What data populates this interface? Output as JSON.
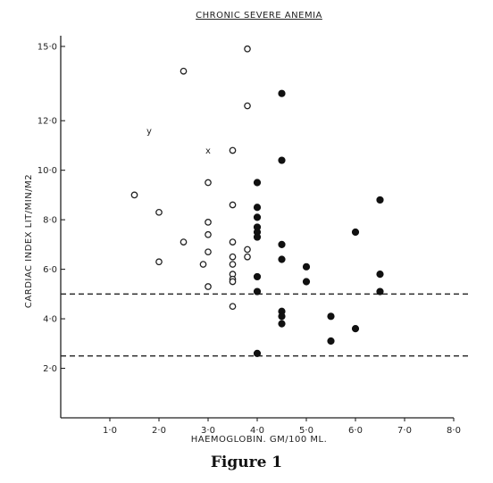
{
  "figure_caption": "Figure 1",
  "chart_data": {
    "type": "scatter",
    "title": "CHRONIC SEVERE ANEMIA",
    "xlabel": "HAEMOGLOBIN. GM/100 ML.",
    "ylabel": "CARDIAC INDEX LIT/MIN/M2",
    "xlim": [
      0,
      8.0
    ],
    "ylim": [
      0,
      15.0
    ],
    "x_ticks": [
      {
        "value": 1.0,
        "label": "1·0"
      },
      {
        "value": 2.0,
        "label": "2·0"
      },
      {
        "value": 3.0,
        "label": "3·0"
      },
      {
        "value": 4.0,
        "label": "4·0"
      },
      {
        "value": 5.0,
        "label": "5·0"
      },
      {
        "value": 6.0,
        "label": "6·0"
      },
      {
        "value": 7.0,
        "label": "7·0"
      },
      {
        "value": 8.0,
        "label": "8·0"
      }
    ],
    "y_ticks": [
      {
        "value": 2.0,
        "label": "2·0"
      },
      {
        "value": 4.0,
        "label": "4·0"
      },
      {
        "value": 6.0,
        "label": "6·0"
      },
      {
        "value": 8.0,
        "label": "8·0"
      },
      {
        "value": 10.0,
        "label": "10·0"
      },
      {
        "value": 12.0,
        "label": "12·0"
      },
      {
        "value": 15.0,
        "label": "15·0"
      }
    ],
    "grid": false,
    "reference_lines": [
      5.0,
      2.5
    ],
    "series": [
      {
        "marker": "open-circle",
        "points": [
          [
            1.5,
            9.0
          ],
          [
            2.0,
            8.3
          ],
          [
            2.0,
            6.3
          ],
          [
            2.5,
            14.0
          ],
          [
            2.5,
            7.1
          ],
          [
            2.9,
            6.2
          ],
          [
            3.0,
            9.5
          ],
          [
            3.0,
            7.9
          ],
          [
            3.0,
            7.4
          ],
          [
            3.0,
            6.7
          ],
          [
            3.0,
            5.3
          ],
          [
            3.5,
            10.8
          ],
          [
            3.5,
            8.6
          ],
          [
            3.5,
            7.1
          ],
          [
            3.5,
            6.5
          ],
          [
            3.5,
            6.2
          ],
          [
            3.5,
            5.8
          ],
          [
            3.5,
            5.6
          ],
          [
            3.5,
            5.5
          ],
          [
            3.5,
            4.5
          ],
          [
            3.8,
            14.9
          ],
          [
            3.8,
            12.6
          ],
          [
            3.8,
            6.8
          ],
          [
            3.8,
            6.5
          ]
        ]
      },
      {
        "marker": "filled-circle",
        "points": [
          [
            4.0,
            9.5
          ],
          [
            4.0,
            8.5
          ],
          [
            4.0,
            8.1
          ],
          [
            4.0,
            7.7
          ],
          [
            4.0,
            7.5
          ],
          [
            4.0,
            7.3
          ],
          [
            4.0,
            5.7
          ],
          [
            4.0,
            5.1
          ],
          [
            4.0,
            2.6
          ],
          [
            4.5,
            13.1
          ],
          [
            4.5,
            10.4
          ],
          [
            4.5,
            7.0
          ],
          [
            4.5,
            6.4
          ],
          [
            4.5,
            4.3
          ],
          [
            4.5,
            4.1
          ],
          [
            4.5,
            3.8
          ],
          [
            5.0,
            6.1
          ],
          [
            5.0,
            5.5
          ],
          [
            5.5,
            4.1
          ],
          [
            5.5,
            3.1
          ],
          [
            6.0,
            7.5
          ],
          [
            6.0,
            3.6
          ],
          [
            6.5,
            8.8
          ],
          [
            6.5,
            5.8
          ],
          [
            6.5,
            5.1
          ]
        ]
      },
      {
        "marker": "y",
        "points": [
          [
            1.8,
            11.6
          ]
        ]
      },
      {
        "marker": "x",
        "points": [
          [
            3.0,
            10.8
          ]
        ]
      }
    ]
  }
}
